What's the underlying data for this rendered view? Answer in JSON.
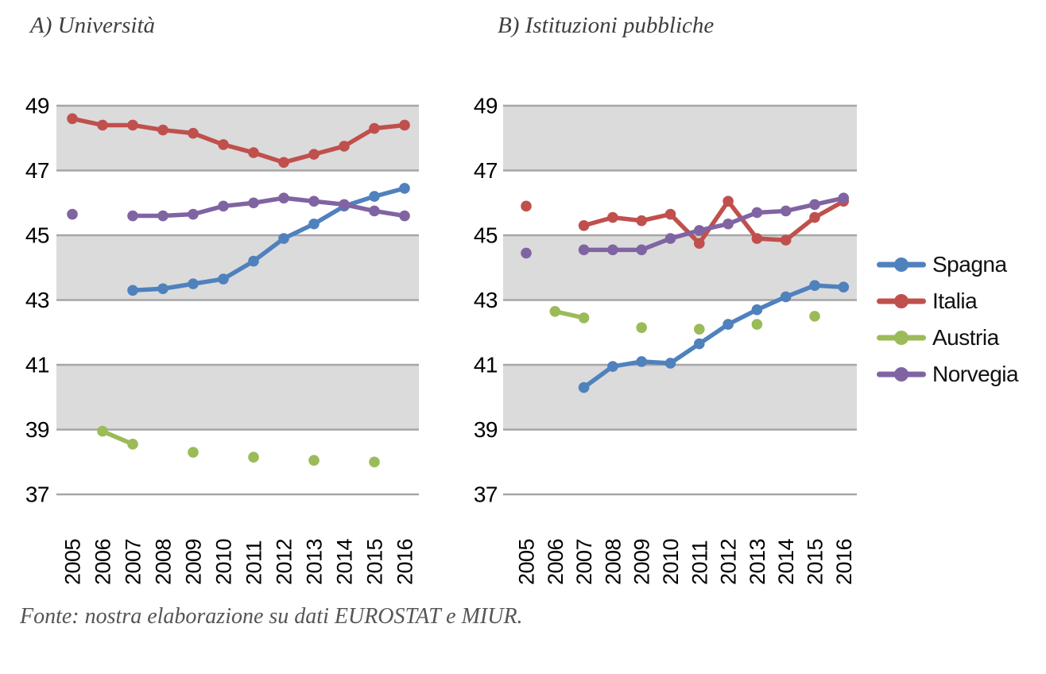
{
  "page": {
    "source_note": "Fonte: nostra elaborazione su dati EUROSTAT e MIUR."
  },
  "colors": {
    "band_fill": "#DBDBDB",
    "gridline": "#A6A6A6",
    "tick_text": "#000000",
    "title_text": "#3F3F3F",
    "source_text": "#555555",
    "spagna": "#4F81BD",
    "italia": "#C0504D",
    "austria": "#9BBB59",
    "norvegia": "#8064A2"
  },
  "legend": {
    "position": "right-middle",
    "items": [
      {
        "label": "Spagna",
        "color": "#4F81BD"
      },
      {
        "label": "Italia",
        "color": "#C0504D"
      },
      {
        "label": "Austria",
        "color": "#9BBB59"
      },
      {
        "label": "Norvegia",
        "color": "#8064A2"
      }
    ]
  },
  "chart_data": [
    {
      "type": "line",
      "title": "A) Università",
      "x": [
        2005,
        2006,
        2007,
        2008,
        2009,
        2010,
        2011,
        2012,
        2013,
        2014,
        2015,
        2016
      ],
      "ylim": [
        37,
        49
      ],
      "yticks": [
        49,
        47,
        45,
        43,
        41,
        39,
        37
      ],
      "shaded_bands": [
        [
          49,
          47
        ],
        [
          45,
          43
        ],
        [
          41,
          39
        ]
      ],
      "grid": "horizontal",
      "series": [
        {
          "name": "Spagna",
          "color": "#4F81BD",
          "values": [
            null,
            null,
            43.3,
            43.35,
            43.5,
            43.65,
            44.2,
            44.9,
            45.35,
            45.9,
            46.2,
            46.45
          ]
        },
        {
          "name": "Italia",
          "color": "#C0504D",
          "values": [
            48.6,
            48.4,
            48.4,
            48.25,
            48.15,
            47.8,
            47.55,
            47.25,
            47.5,
            47.75,
            48.3,
            48.4
          ]
        },
        {
          "name": "Austria",
          "color": "#9BBB59",
          "values": [
            null,
            38.95,
            38.55,
            null,
            38.3,
            null,
            38.15,
            null,
            38.05,
            null,
            38.0,
            null
          ]
        },
        {
          "name": "Norvegia",
          "color": "#8064A2",
          "values": [
            45.65,
            null,
            45.6,
            45.6,
            45.65,
            45.9,
            46.0,
            46.15,
            46.05,
            45.95,
            45.75,
            45.6
          ]
        }
      ]
    },
    {
      "type": "line",
      "title": "B) Istituzioni pubbliche",
      "x": [
        2005,
        2006,
        2007,
        2008,
        2009,
        2010,
        2011,
        2012,
        2013,
        2014,
        2015,
        2016
      ],
      "ylim": [
        37,
        49
      ],
      "yticks": [
        49,
        47,
        45,
        43,
        41,
        39,
        37
      ],
      "shaded_bands": [
        [
          49,
          47
        ],
        [
          45,
          43
        ],
        [
          41,
          39
        ]
      ],
      "grid": "horizontal",
      "series": [
        {
          "name": "Spagna",
          "color": "#4F81BD",
          "values": [
            null,
            null,
            40.3,
            40.95,
            41.1,
            41.05,
            41.65,
            42.25,
            42.7,
            43.1,
            43.45,
            43.4
          ]
        },
        {
          "name": "Italia",
          "color": "#C0504D",
          "values": [
            45.9,
            null,
            45.3,
            45.55,
            45.45,
            45.65,
            44.75,
            46.05,
            44.9,
            44.85,
            45.55,
            46.05
          ]
        },
        {
          "name": "Austria",
          "color": "#9BBB59",
          "values": [
            null,
            42.65,
            42.45,
            null,
            42.15,
            null,
            42.1,
            null,
            42.25,
            null,
            42.5,
            null
          ]
        },
        {
          "name": "Norvegia",
          "color": "#8064A2",
          "values": [
            44.45,
            null,
            44.55,
            44.55,
            44.55,
            44.9,
            45.15,
            45.35,
            45.7,
            45.75,
            45.95,
            46.15
          ]
        }
      ]
    }
  ]
}
